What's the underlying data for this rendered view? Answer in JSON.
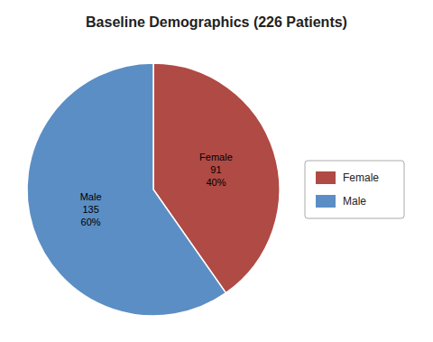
{
  "chart_data": {
    "type": "pie",
    "title": "Baseline Demographics (226 Patients)",
    "categories": [
      "Female",
      "Male"
    ],
    "values": [
      91,
      135
    ],
    "value_labels": [
      "Female\n91\n40%",
      "Male\n135\n60%"
    ],
    "colors": [
      "#b04a44",
      "#5b8ec4"
    ],
    "data_labels": true,
    "legend": "right"
  }
}
